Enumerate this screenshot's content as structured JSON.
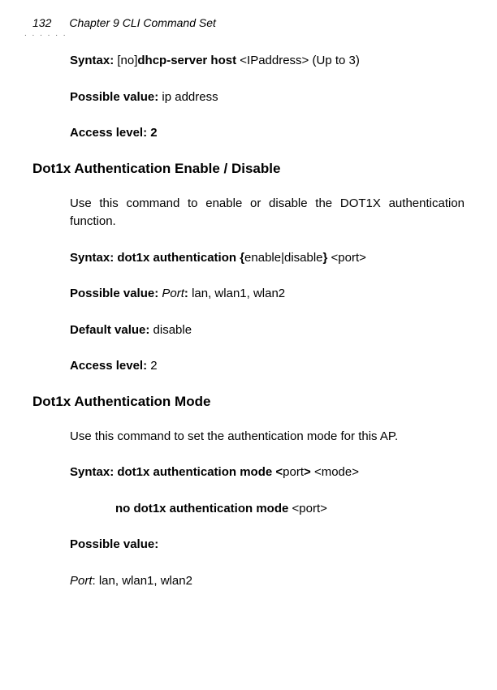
{
  "page_number": "132",
  "chapter_title": "Chapter 9 CLI Command Set",
  "dots": ". . . . . .",
  "p1_syntax_label": "Syntax: ",
  "p1_syntax_no": "[no]",
  "p1_syntax_cmd": "dhcp-server host  ",
  "p1_syntax_arg": "<IPaddress> (Up to 3)",
  "p1_possible_label": "Possible value: ",
  "p1_possible_val": "ip address",
  "p1_access_label": "Access level: 2",
  "h1": "Dot1x Authentication Enable / Disable",
  "s2_desc": "Use this command to enable or disable the DOT1X authentication function.",
  "s2_syntax_b1": "Syntax: dot1x authentication {",
  "s2_syntax_mid": "enable|disable",
  "s2_syntax_b2": "} ",
  "s2_syntax_arg": "<port>",
  "s2_possible_b": "Possible value: ",
  "s2_possible_i": "Port",
  "s2_possible_b2": ": ",
  "s2_possible_val": "lan, wlan1, wlan2",
  "s2_default_b": "Default value: ",
  "s2_default_val": "disable",
  "s2_access_b": "Access level: ",
  "s2_access_val": "2",
  "h2": "Dot1x Authentication Mode",
  "s3_desc": "Use this command to set the authentication mode for this AP.",
  "s3_syntax_b": "Syntax: dot1x authentication mode <",
  "s3_syntax_mid": "port",
  "s3_syntax_b2": "> ",
  "s3_syntax_arg": "<mode>",
  "s3_syntax2_b": "no dot1x authentication mode  ",
  "s3_syntax2_arg": "<port>",
  "s3_possible_b": "Possible value:",
  "s3_port_i": "Port",
  "s3_port_rest": ": lan, wlan1, wlan2"
}
